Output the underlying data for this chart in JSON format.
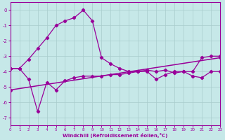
{
  "xlabel": "Windchill (Refroidissement éolien,°C)",
  "background_color": "#c6e8e8",
  "line_color": "#990099",
  "grid_color": "#a8cccc",
  "xlim": [
    0,
    23
  ],
  "ylim": [
    -7.5,
    0.5
  ],
  "yticks": [
    0,
    -1,
    -2,
    -3,
    -4,
    -5,
    -6,
    -7
  ],
  "xticks": [
    0,
    1,
    2,
    3,
    4,
    5,
    6,
    7,
    8,
    9,
    10,
    11,
    12,
    13,
    14,
    15,
    16,
    17,
    18,
    19,
    20,
    21,
    22,
    23
  ],
  "series1_x": [
    0,
    1,
    2,
    3,
    4,
    5,
    6,
    7,
    8,
    9,
    10,
    11,
    12,
    13,
    14,
    15,
    16,
    17,
    18,
    19,
    20,
    21,
    22,
    23
  ],
  "series1_y": [
    -3.8,
    -3.8,
    -4.5,
    -6.6,
    -4.7,
    -5.2,
    -4.6,
    -4.4,
    -4.3,
    -4.3,
    -4.3,
    -4.2,
    -4.2,
    -4.1,
    -4.0,
    -4.0,
    -4.5,
    -4.2,
    -4.0,
    -4.0,
    -4.3,
    -4.4,
    -4.0,
    -4.0
  ],
  "series2_x": [
    0,
    1,
    2,
    3,
    4,
    5,
    6,
    7,
    8,
    9,
    10,
    11,
    12,
    13,
    14,
    15,
    16,
    17,
    18,
    19,
    20,
    21,
    22,
    23
  ],
  "series2_y": [
    -3.8,
    -3.8,
    -3.2,
    -2.5,
    -1.8,
    -1.0,
    -0.7,
    -0.5,
    0.0,
    -0.7,
    -3.1,
    -3.5,
    -3.8,
    -4.0,
    -4.0,
    -3.9,
    -4.0,
    -3.9,
    -4.1,
    -4.0,
    -4.0,
    -3.1,
    -3.0,
    -3.0
  ],
  "series3_x": [
    0,
    23
  ],
  "series3_y": [
    -5.2,
    -3.1
  ]
}
